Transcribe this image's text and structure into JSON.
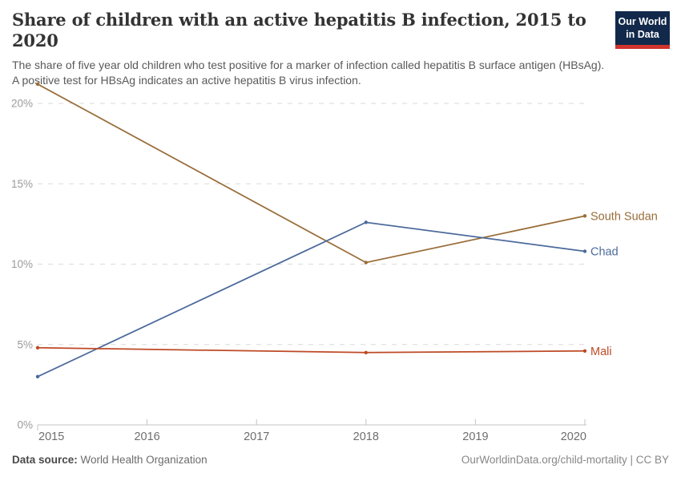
{
  "header": {
    "title": "Share of children with an active hepatitis B infection, 2015 to 2020",
    "subtitle": "The share of five year old children who test positive for a marker of infection called hepatitis B surface antigen (HBsAg). A positive test for HBsAg indicates an active hepatitis B virus infection.",
    "logo": {
      "line1": "Our World",
      "line2": "in Data",
      "background_color": "#12294B",
      "accent_bar_color": "#D0342C"
    }
  },
  "chart_data": {
    "type": "line",
    "title": "Share of children with an active hepatitis B infection, 2015 to 2020",
    "unit": "%",
    "x": [
      2015,
      2018,
      2020
    ],
    "x_ticks": [
      2015,
      2016,
      2017,
      2018,
      2019,
      2020
    ],
    "y_ticks": [
      {
        "value": 0,
        "label": "0%"
      },
      {
        "value": 5,
        "label": "5%"
      },
      {
        "value": 10,
        "label": "10%"
      },
      {
        "value": 15,
        "label": "15%"
      },
      {
        "value": 20,
        "label": "20%"
      }
    ],
    "ylim": [
      0,
      21.5
    ],
    "xlabel": "",
    "ylabel": "",
    "grid": "dashed horizontal gridlines, solid baseline at 0%",
    "legend_position": "labels at right end of each line",
    "series": [
      {
        "name": "South Sudan",
        "color": "#996D39",
        "values": [
          21.2,
          10.1,
          13.0
        ]
      },
      {
        "name": "Chad",
        "color": "#4C6A9C",
        "values": [
          3.0,
          12.6,
          10.8
        ]
      },
      {
        "name": "Mali",
        "color": "#BE4A26",
        "values": [
          4.8,
          4.5,
          4.6
        ]
      }
    ]
  },
  "footer": {
    "source_label": "Data source:",
    "source_value": "World Health Organization",
    "credit": "OurWorldinData.org/child-mortality | CC BY"
  }
}
